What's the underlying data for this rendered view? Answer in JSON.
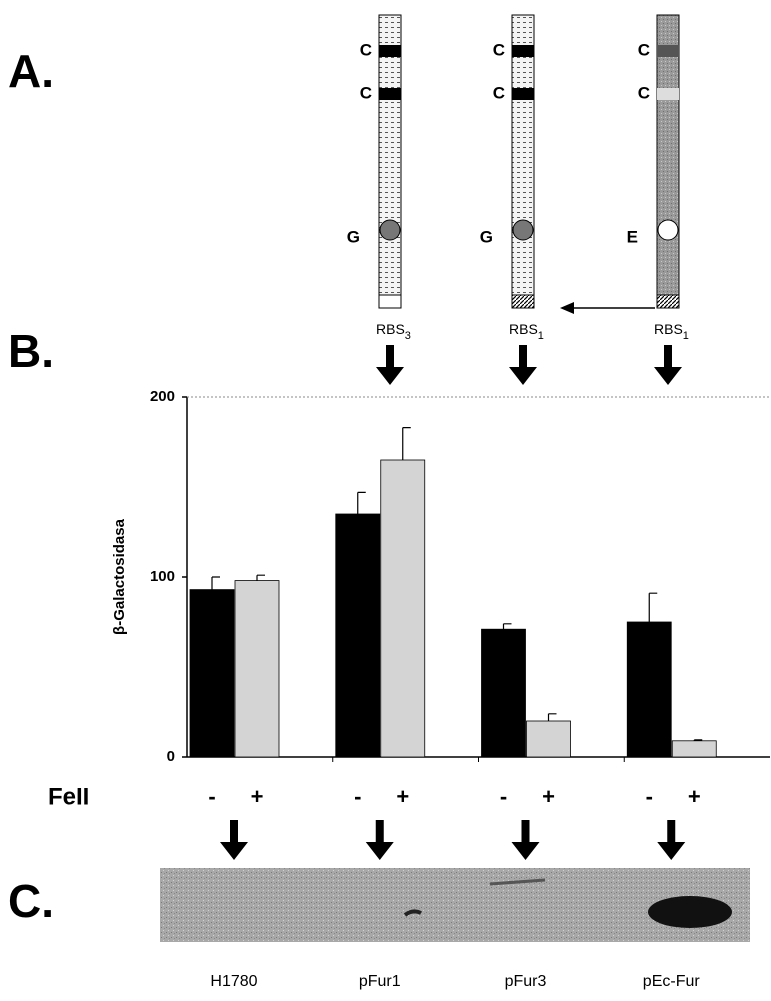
{
  "panel_labels": [
    "A.",
    "B.",
    "C."
  ],
  "constructs": [
    {
      "sites": [
        "C",
        "C",
        "G"
      ],
      "rbs": "RBS",
      "rbs_subscript": "3"
    },
    {
      "sites": [
        "C",
        "C",
        "G"
      ],
      "rbs": "RBS",
      "rbs_subscript": "1"
    },
    {
      "sites": [
        "C",
        "C",
        "E"
      ],
      "rbs": "RBS",
      "rbs_subscript": "1"
    }
  ],
  "chart_data": {
    "type": "bar",
    "ylabel": "β-Galactosidasa",
    "condition_label": "FeII",
    "categories": [
      "H1780",
      "pFur1",
      "pFur3",
      "pEc-Fur"
    ],
    "series": [
      {
        "name": "-",
        "color": "#000000",
        "values": [
          93,
          135,
          71,
          75
        ],
        "errors": [
          7,
          12,
          3,
          16
        ]
      },
      {
        "name": "+",
        "color": "#d4d4d4",
        "values": [
          98,
          165,
          20,
          9
        ],
        "errors": [
          3,
          18,
          4,
          0.5
        ]
      }
    ],
    "ylim": [
      0,
      200
    ],
    "yticks": [
      0,
      100,
      200
    ]
  }
}
